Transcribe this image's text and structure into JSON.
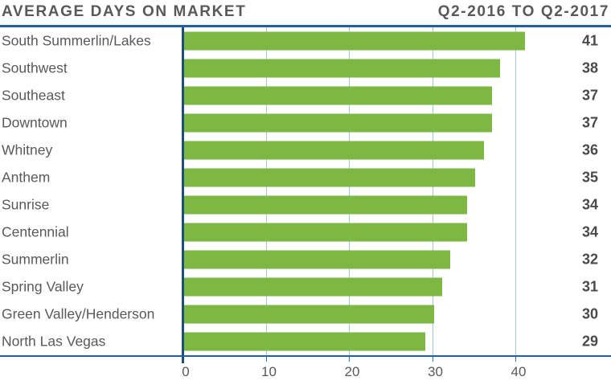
{
  "header": {
    "title": "AVERAGE DAYS ON MARKET",
    "period": "Q2-2016 TO Q2-2017"
  },
  "chart_data": {
    "type": "bar",
    "orientation": "horizontal",
    "title": "AVERAGE DAYS ON MARKET",
    "subtitle": "Q2-2016 TO Q2-2017",
    "xlabel": "",
    "ylabel": "",
    "categories": [
      "South Summerlin/Lakes",
      "Southwest",
      "Southeast",
      "Downtown",
      "Whitney",
      "Anthem",
      "Sunrise",
      "Centennial",
      "Summerlin",
      "Spring Valley",
      "Green Valley/Henderson",
      "North Las Vegas"
    ],
    "values": [
      41,
      38,
      37,
      37,
      36,
      35,
      34,
      34,
      32,
      31,
      30,
      29
    ],
    "xticks": [
      0,
      10,
      20,
      30,
      40
    ],
    "xlim": [
      0,
      51.5
    ],
    "grid": "vertical-gridlines-on",
    "legend": "none",
    "value_labels_position": "right-edge",
    "colors": {
      "bar": "#7db843",
      "rule_line": "#2061a5",
      "axis_line": "#1f4e79",
      "gridline": "#a3c5e8",
      "label_text": "#595959",
      "value_text": "#4a4a4c"
    }
  }
}
